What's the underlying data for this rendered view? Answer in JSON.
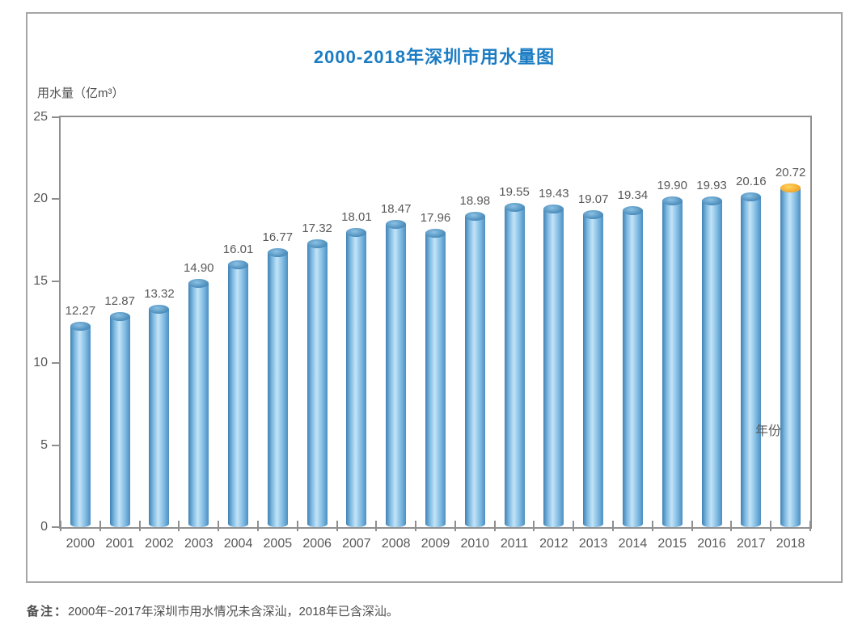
{
  "chart_data": {
    "type": "bar",
    "title": "2000-2018年深圳市用水量图",
    "ylabel": "用水量（亿m³）",
    "xlabel": "年份",
    "categories": [
      "2000",
      "2001",
      "2002",
      "2003",
      "2004",
      "2005",
      "2006",
      "2007",
      "2008",
      "2009",
      "2010",
      "2011",
      "2012",
      "2013",
      "2014",
      "2015",
      "2016",
      "2017",
      "2018"
    ],
    "values": [
      12.27,
      12.87,
      13.32,
      14.9,
      16.01,
      16.77,
      17.32,
      18.01,
      18.47,
      17.96,
      18.98,
      19.55,
      19.43,
      19.07,
      19.34,
      19.9,
      19.93,
      20.16,
      20.72
    ],
    "value_labels": [
      "12.27",
      "12.87",
      "13.32",
      "14.90",
      "16.01",
      "16.77",
      "17.32",
      "18.01",
      "18.47",
      "17.96",
      "18.98",
      "19.55",
      "19.43",
      "19.07",
      "19.34",
      "19.90",
      "19.93",
      "20.16",
      "20.72"
    ],
    "ylim": [
      0,
      25
    ],
    "yticks": [
      0,
      5,
      10,
      15,
      20,
      25
    ],
    "grid": false,
    "legend": null,
    "bar_style": "cylinder",
    "highlight_index": 18,
    "colors": {
      "title": "#1b7cc3",
      "bar_blue": "#5da3d3",
      "bar_highlight_cap": "#f2a92c",
      "axis": "#8f8f8f",
      "text": "#595959"
    }
  },
  "footnote": {
    "label": "备注：",
    "text": "2000年~2017年深圳市用水情况未含深汕，2018年已含深汕。"
  }
}
